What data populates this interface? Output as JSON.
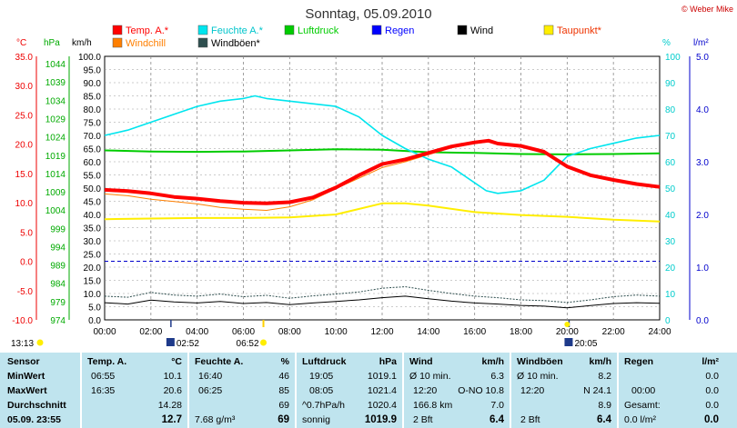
{
  "header": {
    "title": "Sonntag, 05.09.2010",
    "credit": "© Weber Mike"
  },
  "legend": [
    {
      "label": "Temp. A.*",
      "color": "#ff0000"
    },
    {
      "label": "Feuchte A.*",
      "color": "#00e5ee"
    },
    {
      "label": "Luftdruck",
      "color": "#00cc00"
    },
    {
      "label": "Regen",
      "color": "#0000ff"
    },
    {
      "label": "Wind",
      "color": "#000000"
    },
    {
      "label": "Taupunkt*",
      "color": "#ffee00"
    },
    {
      "label": "Windchill",
      "color": "#ff7f00"
    },
    {
      "label": "Windböen*",
      "color": "#2f4f4f"
    }
  ],
  "axes": {
    "temp_unit": "°C",
    "press_unit": "hPa",
    "kmh_unit": "km/h",
    "pct_unit": "%",
    "rain_unit": "l/m²",
    "temp_ticks": [
      "35.0",
      "30.0",
      "25.0",
      "20.0",
      "15.0",
      "10.0",
      "5.0",
      "0.0",
      "-5.0",
      "-10.0"
    ],
    "press_ticks": [
      "1044",
      "1039",
      "1034",
      "1029",
      "1024",
      "1019",
      "1014",
      "1009",
      "1004",
      "999",
      "994",
      "989",
      "984",
      "979",
      "974"
    ],
    "kmh_ticks": [
      "100.0",
      "95.0",
      "90.0",
      "85.0",
      "80.0",
      "75.0",
      "70.0",
      "65.0",
      "60.0",
      "55.0",
      "50.0",
      "45.0",
      "40.0",
      "35.0",
      "30.0",
      "25.0",
      "20.0",
      "15.0",
      "10.0",
      "5.0",
      "0.0"
    ],
    "pct_ticks": [
      "100",
      "90",
      "80",
      "70",
      "60",
      "50",
      "40",
      "30",
      "20",
      "10",
      "0"
    ],
    "rain_ticks": [
      "5.0",
      "4.0",
      "3.0",
      "2.0",
      "1.0",
      "0.0"
    ],
    "time_ticks": [
      "00:00",
      "02:00",
      "04:00",
      "06:00",
      "08:00",
      "10:00",
      "12:00",
      "14:00",
      "16:00",
      "18:00",
      "20:00",
      "22:00",
      "24:00"
    ]
  },
  "markers": {
    "left_time": "13:13",
    "moonrise": "02:52",
    "sunrise": "06:52",
    "moonset": "20:05"
  },
  "chart_data": {
    "type": "line",
    "title": "Sonntag, 05.09.2010",
    "x_label": "",
    "x_range": [
      "00:00",
      "24:00"
    ],
    "y_ranges": {
      "temp_c": [
        -10,
        35
      ],
      "pressure_hpa": [
        974,
        1046
      ],
      "kmh": [
        0,
        100
      ],
      "humidity_pct": [
        0,
        100
      ],
      "rain_lm2": [
        0,
        5
      ]
    },
    "series": [
      {
        "name": "Temp. A.*",
        "axis": "temp_c",
        "color": "#ff0000",
        "x": [
          0,
          1,
          2,
          3,
          4,
          5,
          6,
          7,
          8,
          9,
          10,
          11,
          12,
          13,
          14,
          15,
          16,
          16.6,
          17,
          18,
          19,
          20,
          21,
          22,
          23,
          24
        ],
        "y": [
          12.2,
          12.0,
          11.6,
          11.0,
          10.7,
          10.3,
          10.0,
          9.9,
          10.1,
          10.9,
          12.6,
          14.7,
          16.6,
          17.4,
          18.5,
          19.6,
          20.3,
          20.6,
          20.1,
          19.7,
          18.7,
          16.2,
          14.7,
          13.9,
          13.2,
          12.7
        ]
      },
      {
        "name": "Windchill",
        "axis": "temp_c",
        "color": "#ff7f00",
        "x": [
          0,
          1,
          2,
          3,
          4,
          5,
          6,
          7,
          8,
          9,
          10,
          11,
          12,
          13,
          14,
          15,
          16,
          16.6,
          17,
          18,
          19,
          20,
          21,
          22,
          23,
          24
        ],
        "y": [
          11.5,
          11.2,
          10.6,
          10.2,
          9.8,
          9.2,
          8.9,
          8.7,
          9.3,
          10.5,
          12.4,
          14.2,
          16.0,
          17.0,
          18.2,
          19.4,
          20.1,
          20.4,
          20.0,
          19.6,
          18.6,
          16.0,
          14.5,
          13.7,
          13.0,
          12.6
        ]
      },
      {
        "name": "Feuchte A.*",
        "axis": "humidity_pct",
        "color": "#00e5ee",
        "x": [
          0,
          1,
          2,
          3,
          4,
          5,
          6,
          6.5,
          7,
          8,
          9,
          10,
          11,
          12,
          13,
          14,
          15,
          16,
          16.5,
          17,
          18,
          19,
          20,
          21,
          22,
          23,
          24
        ],
        "y": [
          70,
          72,
          75,
          78,
          81,
          83,
          84,
          85,
          84,
          83,
          82,
          81,
          77,
          70,
          65,
          61,
          58,
          52,
          49,
          48,
          49,
          53,
          62,
          65,
          67,
          69,
          70
        ]
      },
      {
        "name": "Luftdruck",
        "axis": "pressure_hpa",
        "color": "#00cc00",
        "x": [
          0,
          2,
          4,
          6,
          8,
          10,
          12,
          14,
          16,
          18,
          20,
          22,
          24
        ],
        "y": [
          1020.3,
          1020.0,
          1019.9,
          1020.0,
          1020.3,
          1020.6,
          1020.5,
          1019.8,
          1019.6,
          1019.3,
          1019.2,
          1019.3,
          1019.5
        ]
      },
      {
        "name": "Taupunkt*",
        "axis": "temp_c",
        "color": "#ffee00",
        "x": [
          0,
          2,
          4,
          6,
          8,
          10,
          12,
          13,
          14,
          16,
          18,
          20,
          22,
          24
        ],
        "y": [
          7.2,
          7.3,
          7.4,
          7.4,
          7.5,
          8.0,
          9.9,
          9.9,
          9.5,
          8.4,
          7.9,
          7.6,
          7.1,
          6.8
        ]
      },
      {
        "name": "Wind",
        "axis": "kmh",
        "color": "#000000",
        "x": [
          0,
          1,
          2,
          3,
          4,
          5,
          6,
          7,
          8,
          9,
          10,
          11,
          12,
          13,
          14,
          15,
          16,
          17,
          18,
          19,
          20,
          21,
          22,
          23,
          24
        ],
        "y": [
          6.5,
          6.0,
          7.5,
          6.8,
          6.4,
          7.0,
          6.2,
          6.6,
          5.8,
          6.4,
          7.0,
          7.6,
          8.4,
          9.0,
          8.0,
          7.1,
          6.4,
          6.0,
          5.5,
          5.2,
          4.6,
          5.4,
          6.2,
          6.5,
          6.3
        ]
      },
      {
        "name": "Windböen*",
        "axis": "kmh",
        "color": "#2f4f4f",
        "x": [
          0,
          1,
          2,
          3,
          4,
          5,
          6,
          7,
          8,
          9,
          10,
          11,
          12,
          13,
          14,
          15,
          16,
          17,
          18,
          19,
          20,
          21,
          22,
          23,
          24
        ],
        "y": [
          9.0,
          8.6,
          10.4,
          9.4,
          9.0,
          9.8,
          8.8,
          9.3,
          8.2,
          9.1,
          9.8,
          10.6,
          12.0,
          12.6,
          11.2,
          10.0,
          9.0,
          8.4,
          7.6,
          7.3,
          6.6,
          7.6,
          8.8,
          9.4,
          9.0
        ]
      },
      {
        "name": "Regen",
        "axis": "rain_lm2",
        "color": "#0000ff",
        "x": [
          0,
          24
        ],
        "y": [
          0,
          0
        ]
      }
    ]
  },
  "table": {
    "row_labels": [
      "Sensor",
      "MinWert",
      "MaxWert",
      "Durchschnitt",
      "05.09. 23:55"
    ],
    "temp": {
      "head": "Temp. A.",
      "unit": "°C",
      "rows": [
        [
          "06:55",
          "10.1"
        ],
        [
          "16:35",
          "20.6"
        ],
        [
          "",
          "14.28"
        ],
        [
          "",
          "12.7"
        ]
      ]
    },
    "hum": {
      "head": "Feuchte A.",
      "unit": "%",
      "rows": [
        [
          "16:40",
          "46"
        ],
        [
          "06:25",
          "85"
        ],
        [
          "",
          "69"
        ],
        [
          "7.68 g/m³",
          "69"
        ]
      ]
    },
    "press": {
      "head": "Luftdruck",
      "unit": "hPa",
      "rows": [
        [
          "19:05",
          "1019.1"
        ],
        [
          "08:05",
          "1021.4"
        ],
        [
          "^0.7hPa/h",
          "1020.4"
        ],
        [
          "sonnig",
          "1019.9"
        ]
      ]
    },
    "wind": {
      "head": "Wind",
      "unit": "km/h",
      "rows": [
        [
          "Ø 10 min.",
          "6.3"
        ],
        [
          "12:20",
          "O-NO 10.8"
        ],
        [
          "166.8 km",
          "7.0"
        ],
        [
          "2 Bft",
          "6.4"
        ]
      ]
    },
    "gust": {
      "head": "Windböen",
      "unit": "km/h",
      "rows": [
        [
          "Ø 10 min.",
          "8.2"
        ],
        [
          "12:20",
          "N 24.1"
        ],
        [
          "",
          "8.9"
        ],
        [
          "2 Bft",
          "6.4"
        ]
      ]
    },
    "rain": {
      "head": "Regen",
      "unit": "l/m²",
      "rows": [
        [
          "",
          "0.0"
        ],
        [
          "00:00",
          "0.0"
        ],
        [
          "Gesamt:",
          "0.0"
        ],
        [
          "0.0 l/m²",
          "0.0"
        ]
      ]
    }
  }
}
